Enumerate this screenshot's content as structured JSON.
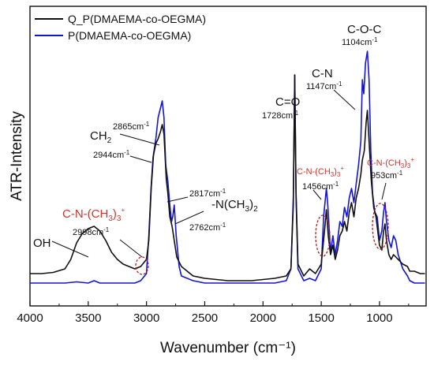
{
  "chart_data": {
    "type": "line",
    "xlabel": "Wavenumber (cm⁻¹)",
    "ylabel": "ATR-Intensity",
    "xlim": [
      4000,
      600
    ],
    "x_ticks": [
      4000,
      3500,
      3000,
      2500,
      2000,
      1500,
      1000
    ],
    "y_ticks_shown": false,
    "legend_position": "top-left",
    "series": [
      {
        "name": "Q_P(DMAEMA-co-OEGMA)",
        "color": "#111111",
        "points": [
          [
            4000,
            0.06
          ],
          [
            3900,
            0.06
          ],
          [
            3800,
            0.065
          ],
          [
            3700,
            0.08
          ],
          [
            3650,
            0.12
          ],
          [
            3600,
            0.19
          ],
          [
            3550,
            0.23
          ],
          [
            3500,
            0.25
          ],
          [
            3450,
            0.26
          ],
          [
            3400,
            0.24
          ],
          [
            3350,
            0.2
          ],
          [
            3300,
            0.15
          ],
          [
            3250,
            0.12
          ],
          [
            3200,
            0.1
          ],
          [
            3100,
            0.08
          ],
          [
            3050,
            0.09
          ],
          [
            3000,
            0.12
          ],
          [
            2980,
            0.2
          ],
          [
            2960,
            0.42
          ],
          [
            2940,
            0.56
          ],
          [
            2920,
            0.61
          ],
          [
            2900,
            0.63
          ],
          [
            2880,
            0.66
          ],
          [
            2865,
            0.69
          ],
          [
            2850,
            0.65
          ],
          [
            2830,
            0.46
          ],
          [
            2817,
            0.4
          ],
          [
            2800,
            0.3
          ],
          [
            2780,
            0.26
          ],
          [
            2762,
            0.2
          ],
          [
            2740,
            0.13
          ],
          [
            2700,
            0.09
          ],
          [
            2600,
            0.05
          ],
          [
            2500,
            0.04
          ],
          [
            2300,
            0.03
          ],
          [
            2100,
            0.03
          ],
          [
            1900,
            0.04
          ],
          [
            1800,
            0.05
          ],
          [
            1760,
            0.08
          ],
          [
            1740,
            0.35
          ],
          [
            1728,
            0.9
          ],
          [
            1716,
            0.4
          ],
          [
            1700,
            0.1
          ],
          [
            1650,
            0.05
          ],
          [
            1600,
            0.08
          ],
          [
            1550,
            0.06
          ],
          [
            1500,
            0.1
          ],
          [
            1470,
            0.25
          ],
          [
            1456,
            0.33
          ],
          [
            1440,
            0.22
          ],
          [
            1420,
            0.14
          ],
          [
            1400,
            0.18
          ],
          [
            1380,
            0.12
          ],
          [
            1360,
            0.16
          ],
          [
            1340,
            0.22
          ],
          [
            1320,
            0.24
          ],
          [
            1300,
            0.28
          ],
          [
            1280,
            0.24
          ],
          [
            1260,
            0.32
          ],
          [
            1240,
            0.36
          ],
          [
            1220,
            0.3
          ],
          [
            1200,
            0.38
          ],
          [
            1180,
            0.42
          ],
          [
            1160,
            0.48
          ],
          [
            1147,
            0.54
          ],
          [
            1130,
            0.58
          ],
          [
            1115,
            0.7
          ],
          [
            1104,
            0.75
          ],
          [
            1090,
            0.62
          ],
          [
            1070,
            0.45
          ],
          [
            1050,
            0.34
          ],
          [
            1030,
            0.3
          ],
          [
            1000,
            0.18
          ],
          [
            980,
            0.16
          ],
          [
            965,
            0.24
          ],
          [
            953,
            0.27
          ],
          [
            940,
            0.2
          ],
          [
            920,
            0.14
          ],
          [
            900,
            0.12
          ],
          [
            880,
            0.14
          ],
          [
            860,
            0.13
          ],
          [
            840,
            0.12
          ],
          [
            800,
            0.1
          ],
          [
            760,
            0.09
          ],
          [
            740,
            0.07
          ],
          [
            700,
            0.07
          ],
          [
            650,
            0.06
          ],
          [
            610,
            0.06
          ]
        ]
      },
      {
        "name": "P(DMAEMA-co-OEGMA)",
        "color": "#1515d4",
        "points": [
          [
            4000,
            0.02
          ],
          [
            3900,
            0.02
          ],
          [
            3800,
            0.02
          ],
          [
            3700,
            0.02
          ],
          [
            3600,
            0.025
          ],
          [
            3500,
            0.02
          ],
          [
            3450,
            0.03
          ],
          [
            3400,
            0.02
          ],
          [
            3300,
            0.02
          ],
          [
            3200,
            0.02
          ],
          [
            3100,
            0.02
          ],
          [
            3050,
            0.03
          ],
          [
            3000,
            0.06
          ],
          [
            2980,
            0.22
          ],
          [
            2960,
            0.43
          ],
          [
            2944,
            0.55
          ],
          [
            2920,
            0.63
          ],
          [
            2900,
            0.72
          ],
          [
            2880,
            0.76
          ],
          [
            2865,
            0.79
          ],
          [
            2850,
            0.72
          ],
          [
            2835,
            0.52
          ],
          [
            2817,
            0.45
          ],
          [
            2800,
            0.35
          ],
          [
            2785,
            0.28
          ],
          [
            2775,
            0.3
          ],
          [
            2762,
            0.35
          ],
          [
            2745,
            0.22
          ],
          [
            2720,
            0.09
          ],
          [
            2700,
            0.05
          ],
          [
            2600,
            0.03
          ],
          [
            2500,
            0.02
          ],
          [
            2300,
            0.02
          ],
          [
            2100,
            0.02
          ],
          [
            1900,
            0.02
          ],
          [
            1800,
            0.03
          ],
          [
            1760,
            0.08
          ],
          [
            1740,
            0.38
          ],
          [
            1728,
            0.9
          ],
          [
            1716,
            0.38
          ],
          [
            1700,
            0.08
          ],
          [
            1650,
            0.03
          ],
          [
            1600,
            0.04
          ],
          [
            1550,
            0.03
          ],
          [
            1500,
            0.08
          ],
          [
            1480,
            0.3
          ],
          [
            1456,
            0.42
          ],
          [
            1445,
            0.36
          ],
          [
            1420,
            0.15
          ],
          [
            1400,
            0.22
          ],
          [
            1380,
            0.14
          ],
          [
            1360,
            0.2
          ],
          [
            1340,
            0.28
          ],
          [
            1320,
            0.26
          ],
          [
            1300,
            0.34
          ],
          [
            1280,
            0.3
          ],
          [
            1260,
            0.38
          ],
          [
            1240,
            0.42
          ],
          [
            1220,
            0.36
          ],
          [
            1200,
            0.44
          ],
          [
            1180,
            0.52
          ],
          [
            1160,
            0.62
          ],
          [
            1147,
            0.88
          ],
          [
            1135,
            0.82
          ],
          [
            1120,
            0.95
          ],
          [
            1104,
            1.0
          ],
          [
            1090,
            0.88
          ],
          [
            1075,
            0.58
          ],
          [
            1060,
            0.4
          ],
          [
            1040,
            0.32
          ],
          [
            1020,
            0.3
          ],
          [
            1000,
            0.2
          ],
          [
            980,
            0.24
          ],
          [
            965,
            0.32
          ],
          [
            953,
            0.36
          ],
          [
            940,
            0.28
          ],
          [
            920,
            0.2
          ],
          [
            900,
            0.17
          ],
          [
            880,
            0.22
          ],
          [
            860,
            0.2
          ],
          [
            840,
            0.14
          ],
          [
            800,
            0.08
          ],
          [
            760,
            0.05
          ],
          [
            740,
            0.03
          ],
          [
            700,
            0.02
          ],
          [
            650,
            0.02
          ],
          [
            610,
            0.02
          ]
        ]
      }
    ],
    "annotations": [
      {
        "label": "OH",
        "color": "#111111"
      },
      {
        "label": "CH",
        "sub": "2",
        "color": "#111111"
      },
      {
        "label": "2865cm",
        "sup": "-1",
        "color": "#111111"
      },
      {
        "label": "2944cm",
        "sup": "-1",
        "color": "#111111"
      },
      {
        "label": "2817cm",
        "sup": "-1",
        "color": "#111111"
      },
      {
        "label": "-N(CH",
        "sub": "3",
        "after": ")",
        "sub2": "2",
        "color": "#111111"
      },
      {
        "label": "2762cm",
        "sup": "-1",
        "color": "#111111"
      },
      {
        "label": "C-N-(CH",
        "sub": "3",
        "after": ")",
        "sub2": "3",
        "sup": "+",
        "color": "#d0342c"
      },
      {
        "label": "2998cm",
        "sup": "-1",
        "color": "#111111"
      },
      {
        "label": "C=O",
        "color": "#111111"
      },
      {
        "label": "1728cm",
        "sup": "-1",
        "color": "#111111"
      },
      {
        "label": "C-N",
        "color": "#111111"
      },
      {
        "label": "1147cm",
        "sup": "-1",
        "color": "#111111"
      },
      {
        "label": "C-O-C",
        "color": "#111111"
      },
      {
        "label": "1104cm",
        "sup": "-1",
        "color": "#111111"
      },
      {
        "label": "C-N-(CH",
        "sub": "3",
        "after": ")",
        "sub2": "3",
        "sup": "+",
        "color": "#d0342c"
      },
      {
        "label": "1456cm",
        "sup": "-1",
        "color": "#111111"
      },
      {
        "label": "C-N-(CH",
        "sub": "3",
        "after": ")",
        "sub2": "3",
        "sup": "+",
        "color": "#d0342c"
      },
      {
        "label": "953cm",
        "sup": "-1",
        "color": "#111111"
      }
    ]
  }
}
